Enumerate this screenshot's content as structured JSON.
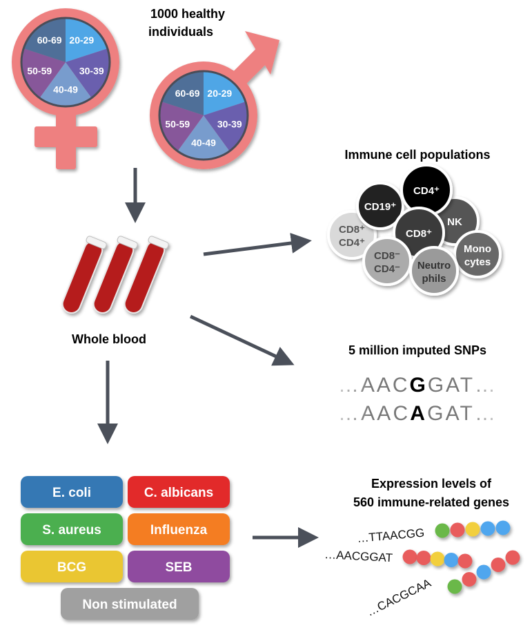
{
  "cohort": {
    "title_line1": "1000 healthy",
    "title_line2": "individuals",
    "age_groups": [
      "20-29",
      "30-39",
      "40-49",
      "50-59",
      "60-69"
    ],
    "age_colors": [
      "#4fa6e6",
      "#6a5fae",
      "#789ccd",
      "#87579a",
      "#4f6f98"
    ],
    "symbol_color": "#ee8080"
  },
  "blood": {
    "label": "Whole blood"
  },
  "immune": {
    "title": "Immune cell populations",
    "cells": [
      {
        "label1": "CD8⁺",
        "label2": "CD4⁺",
        "fill": "#d9d9d9",
        "text": "#555555"
      },
      {
        "label1": "CD19⁺",
        "label2": "",
        "fill": "#222222",
        "text": "#ffffff"
      },
      {
        "label1": "NK",
        "label2": "",
        "fill": "#555555",
        "text": "#ffffff"
      },
      {
        "label1": "CD4⁺",
        "label2": "",
        "fill": "#000000",
        "text": "#ffffff"
      },
      {
        "label1": "CD8⁺",
        "label2": "",
        "fill": "#3a3a3a",
        "text": "#ffffff"
      },
      {
        "label1": "Mono",
        "label2": "cytes",
        "fill": "#686868",
        "text": "#ffffff"
      },
      {
        "label1": "CD8⁻",
        "label2": "CD4⁻",
        "fill": "#ababab",
        "text": "#444444"
      },
      {
        "label1": "Neutro",
        "label2": "phils",
        "fill": "#9a9a9a",
        "text": "#333333"
      }
    ]
  },
  "snps": {
    "title": "5 million imputed SNPs",
    "seq1": {
      "pre": "…AAC",
      "snp": "G",
      "post": "GAT…"
    },
    "seq2": {
      "pre": "…AAC",
      "snp": "A",
      "post": "GAT…"
    }
  },
  "stimuli": [
    {
      "label": "E. coli",
      "color": "#3478b4"
    },
    {
      "label": "C. albicans",
      "color": "#e2292b"
    },
    {
      "label": "S. aureus",
      "color": "#4caf4f"
    },
    {
      "label": "Influenza",
      "color": "#f47d21"
    },
    {
      "label": "BCG",
      "color": "#eac632"
    },
    {
      "label": "SEB",
      "color": "#8f4b9f"
    },
    {
      "label": "Non stimulated",
      "color": "#a0a0a0"
    }
  ],
  "expression": {
    "title_line1": "Expression levels of",
    "title_line2": "560 immune-related genes",
    "rows": [
      {
        "seq": "…TTAACGG",
        "beads": [
          "#6ab84a",
          "#e85c5c",
          "#f2cf3c",
          "#4fa6ee",
          "#4fa6ee"
        ]
      },
      {
        "seq": "…AACGGAT",
        "beads": [
          "#e85c5c",
          "#e85c5c",
          "#f2cf3c",
          "#4fa6ee",
          "#e85c5c"
        ]
      },
      {
        "seq": "…CACGCAA",
        "beads": [
          "#6ab84a",
          "#e85c5c",
          "#4fa6ee",
          "#e85c5c",
          "#e85c5c"
        ]
      }
    ]
  },
  "arrow_color": "#4b505a"
}
